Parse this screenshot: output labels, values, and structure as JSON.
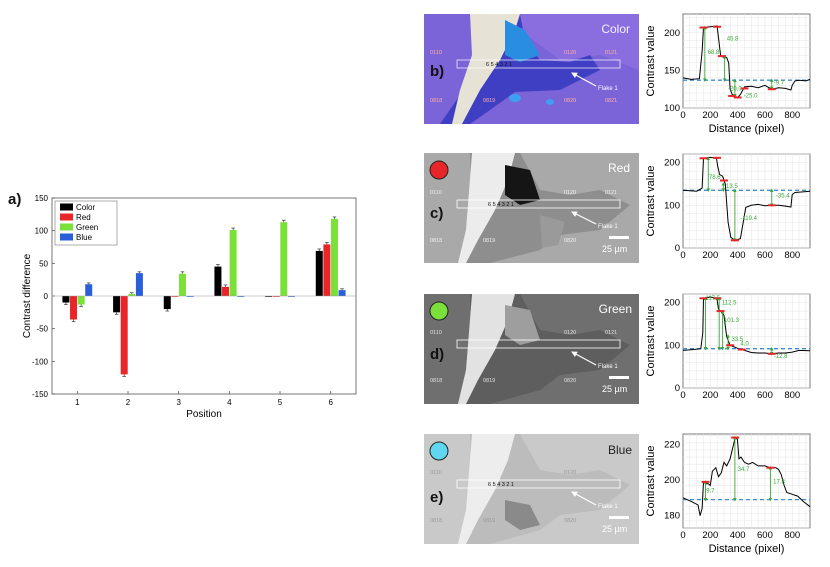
{
  "colors": {
    "Color": "#000000",
    "Red": "#e8262a",
    "Green": "#7ce03a",
    "Blue": "#2b5fd9",
    "baseline": "#3f8fd0",
    "annotation": "#3aa63a",
    "marker": "#e8262a"
  },
  "panel_labels": {
    "a": "a)",
    "b": "b)",
    "c": "c)",
    "d": "d)",
    "e": "e)"
  },
  "images": [
    {
      "key": "b",
      "channel_label": "Color",
      "flake_label": "Flake 1",
      "scale_bar": "",
      "position_labels": "6 5 4 3 2 1",
      "grid_codes": [
        "0110",
        "0120",
        "0121",
        "0818",
        "0819",
        "0820",
        "0821"
      ],
      "dot_color": ""
    },
    {
      "key": "c",
      "channel_label": "Red",
      "flake_label": "Flake 1",
      "scale_bar": "25 µm",
      "position_labels": "6 5 4 3 2 1",
      "grid_codes": [
        "0110",
        "0120",
        "0121",
        "0818",
        "0819",
        "0820",
        "0821"
      ],
      "dot_color": "#e8262a"
    },
    {
      "key": "d",
      "channel_label": "Green",
      "flake_label": "Flake 1",
      "scale_bar": "25 µm",
      "position_labels": "6 5 4 3 2 1",
      "grid_codes": [
        "0110",
        "0120",
        "0121",
        "0818",
        "0819",
        "0820",
        "0821"
      ],
      "dot_color": "#7ce03a"
    },
    {
      "key": "e",
      "channel_label": "Blue",
      "flake_label": "Flake 1",
      "scale_bar": "25 µm",
      "position_labels": "6 5 4 3 2 1",
      "grid_codes": [
        "0110",
        "0120",
        "0121",
        "0818",
        "0819",
        "0820",
        "0821"
      ],
      "dot_color": "#60d6f0"
    }
  ],
  "chart_data": [
    {
      "id": "a",
      "type": "bar",
      "xlabel": "Position",
      "ylabel": "Contrast difference",
      "categories": [
        "1",
        "2",
        "3",
        "4",
        "5",
        "6"
      ],
      "ylim": [
        -150,
        150
      ],
      "yticks": [
        -150,
        -100,
        -50,
        0,
        50,
        100,
        150
      ],
      "legend_position": "top-left",
      "series": [
        {
          "name": "Color",
          "values": [
            -10,
            -25,
            -20,
            45,
            0,
            69
          ],
          "errors": [
            3,
            3,
            3,
            3,
            0,
            3
          ]
        },
        {
          "name": "Red",
          "values": [
            -36,
            -120,
            0,
            14,
            0,
            79
          ],
          "errors": [
            3,
            3,
            0,
            3,
            0,
            3
          ]
        },
        {
          "name": "Green",
          "values": [
            -13,
            3,
            34,
            101,
            113,
            118
          ],
          "errors": [
            3,
            2,
            3,
            3,
            3,
            3
          ]
        },
        {
          "name": "Blue",
          "values": [
            18,
            35,
            0,
            0,
            0,
            9
          ],
          "errors": [
            2,
            2,
            0,
            0,
            0,
            2
          ]
        }
      ]
    },
    {
      "id": "b-profile",
      "type": "line",
      "xlabel": "Distance (pixel)",
      "ylabel": "Contrast value",
      "xlim": [
        0,
        930
      ],
      "ylim": [
        100,
        225
      ],
      "xticks": [
        0,
        200,
        400,
        600,
        800
      ],
      "yticks": [
        100,
        150,
        200
      ],
      "grid": true,
      "baseline": 137,
      "profile": [
        [
          0,
          140
        ],
        [
          60,
          138
        ],
        [
          120,
          139
        ],
        [
          140,
          175
        ],
        [
          150,
          207
        ],
        [
          200,
          208
        ],
        [
          250,
          209
        ],
        [
          262,
          190
        ],
        [
          275,
          170
        ],
        [
          290,
          168
        ],
        [
          320,
          167
        ],
        [
          335,
          160
        ],
        [
          345,
          125
        ],
        [
          360,
          118
        ],
        [
          380,
          116
        ],
        [
          400,
          114
        ],
        [
          420,
          118
        ],
        [
          450,
          128
        ],
        [
          500,
          129
        ],
        [
          550,
          127
        ],
        [
          600,
          130
        ],
        [
          650,
          125
        ],
        [
          700,
          127
        ],
        [
          750,
          126
        ],
        [
          790,
          124
        ],
        [
          800,
          130
        ],
        [
          820,
          136
        ],
        [
          850,
          137
        ],
        [
          900,
          136
        ],
        [
          930,
          138
        ]
      ],
      "markers": [
        [
          150,
          207
        ],
        [
          250,
          208
        ],
        [
          285,
          169
        ],
        [
          360,
          116
        ],
        [
          400,
          114
        ],
        [
          450,
          126
        ],
        [
          650,
          125
        ]
      ],
      "annotations": [
        {
          "text": "68.8",
          "x": 180,
          "y": 172
        },
        {
          "text": "45.8",
          "x": 320,
          "y": 190
        },
        {
          "text": "-20.0",
          "x": 330,
          "y": 123
        },
        {
          "text": "-25.0",
          "x": 445,
          "y": 114
        },
        {
          "text": "-9.7",
          "x": 665,
          "y": 131
        }
      ],
      "arrows": [
        [
          160,
          137,
          207
        ],
        [
          305,
          137,
          168
        ],
        [
          380,
          137,
          116
        ],
        [
          650,
          137,
          126
        ]
      ]
    },
    {
      "id": "c-profile",
      "type": "line",
      "xlabel": "",
      "ylabel": "Contrast value",
      "xlim": [
        0,
        930
      ],
      "ylim": [
        0,
        220
      ],
      "xticks": [
        0,
        200,
        400,
        600,
        800
      ],
      "yticks": [
        0,
        100,
        200
      ],
      "grid": true,
      "baseline": 135,
      "profile": [
        [
          0,
          135
        ],
        [
          100,
          133
        ],
        [
          140,
          140
        ],
        [
          150,
          210
        ],
        [
          200,
          212
        ],
        [
          245,
          210
        ],
        [
          255,
          190
        ],
        [
          268,
          172
        ],
        [
          290,
          168
        ],
        [
          310,
          150
        ],
        [
          330,
          60
        ],
        [
          350,
          25
        ],
        [
          380,
          18
        ],
        [
          420,
          22
        ],
        [
          460,
          95
        ],
        [
          500,
          100
        ],
        [
          550,
          102
        ],
        [
          600,
          99
        ],
        [
          650,
          100
        ],
        [
          700,
          100
        ],
        [
          750,
          98
        ],
        [
          790,
          96
        ],
        [
          800,
          125
        ],
        [
          820,
          130
        ],
        [
          900,
          132
        ],
        [
          930,
          133
        ]
      ],
      "markers": [
        [
          150,
          210
        ],
        [
          250,
          211
        ],
        [
          300,
          158
        ],
        [
          380,
          18
        ],
        [
          650,
          100
        ]
      ],
      "annotations": [
        {
          "text": "78.6",
          "x": 190,
          "y": 162
        },
        {
          "text": "13.5",
          "x": 315,
          "y": 140
        },
        {
          "text": "-119.4",
          "x": 420,
          "y": 65
        },
        {
          "text": "-35.4",
          "x": 680,
          "y": 118
        }
      ],
      "arrows": [
        [
          185,
          135,
          210
        ],
        [
          295,
          135,
          150
        ],
        [
          380,
          135,
          18
        ],
        [
          650,
          135,
          100
        ]
      ]
    },
    {
      "id": "d-profile",
      "type": "line",
      "xlabel": "",
      "ylabel": "Contrast value",
      "xlim": [
        0,
        930
      ],
      "ylim": [
        0,
        220
      ],
      "xticks": [
        0,
        200,
        400,
        600,
        800
      ],
      "yticks": [
        0,
        100,
        200
      ],
      "grid": true,
      "baseline": 92,
      "profile": [
        [
          0,
          88
        ],
        [
          80,
          90
        ],
        [
          130,
          92
        ],
        [
          145,
          130
        ],
        [
          150,
          210
        ],
        [
          200,
          213
        ],
        [
          248,
          210
        ],
        [
          260,
          185
        ],
        [
          275,
          180
        ],
        [
          300,
          170
        ],
        [
          320,
          120
        ],
        [
          345,
          100
        ],
        [
          360,
          98
        ],
        [
          400,
          93
        ],
        [
          450,
          88
        ],
        [
          500,
          83
        ],
        [
          550,
          82
        ],
        [
          600,
          82
        ],
        [
          650,
          80
        ],
        [
          700,
          82
        ],
        [
          750,
          82
        ],
        [
          800,
          84
        ],
        [
          850,
          88
        ],
        [
          930,
          87
        ]
      ],
      "markers": [
        [
          150,
          210
        ],
        [
          252,
          210
        ],
        [
          275,
          180
        ],
        [
          345,
          100
        ],
        [
          430,
          90
        ],
        [
          650,
          80
        ]
      ],
      "annotations": [
        {
          "text": "117.5",
          "x": 165,
          "y": 206
        },
        {
          "text": "112.5",
          "x": 285,
          "y": 195
        },
        {
          "text": "101.3",
          "x": 300,
          "y": 155
        },
        {
          "text": "33.5",
          "x": 355,
          "y": 110
        },
        {
          "text": "4.0",
          "x": 420,
          "y": 100
        },
        {
          "text": "-12.8",
          "x": 665,
          "y": 70
        }
      ],
      "arrows": [
        [
          165,
          92,
          210
        ],
        [
          265,
          92,
          210
        ],
        [
          290,
          92,
          178
        ],
        [
          330,
          92,
          122
        ],
        [
          650,
          92,
          80
        ]
      ]
    },
    {
      "id": "e-profile",
      "type": "line",
      "xlabel": "Distance (pixel)",
      "ylabel": "Contrast value",
      "xlim": [
        0,
        930
      ],
      "ylim": [
        173,
        226
      ],
      "xticks": [
        0,
        200,
        400,
        600,
        800
      ],
      "yticks": [
        180,
        200,
        220
      ],
      "grid": true,
      "baseline": 189,
      "profile": [
        [
          0,
          190
        ],
        [
          60,
          188
        ],
        [
          110,
          186
        ],
        [
          125,
          180
        ],
        [
          140,
          184
        ],
        [
          150,
          199
        ],
        [
          165,
          198
        ],
        [
          185,
          198
        ],
        [
          200,
          197
        ],
        [
          215,
          205
        ],
        [
          240,
          207
        ],
        [
          260,
          202
        ],
        [
          280,
          204
        ],
        [
          300,
          210
        ],
        [
          320,
          208
        ],
        [
          345,
          212
        ],
        [
          370,
          220
        ],
        [
          382,
          224
        ],
        [
          398,
          223
        ],
        [
          410,
          212
        ],
        [
          425,
          213
        ],
        [
          450,
          210
        ],
        [
          480,
          209
        ],
        [
          510,
          210
        ],
        [
          550,
          208
        ],
        [
          600,
          208
        ],
        [
          640,
          207
        ],
        [
          680,
          207
        ],
        [
          700,
          206
        ],
        [
          720,
          203
        ],
        [
          740,
          197
        ],
        [
          760,
          193
        ],
        [
          800,
          192
        ],
        [
          840,
          191
        ],
        [
          880,
          188
        ],
        [
          930,
          185
        ]
      ],
      "markers": [
        [
          165,
          199
        ],
        [
          382,
          224
        ],
        [
          640,
          207
        ]
      ],
      "annotations": [
        {
          "text": "9.7",
          "x": 170,
          "y": 193
        },
        {
          "text": "34.7",
          "x": 400,
          "y": 205
        },
        {
          "text": "17.8",
          "x": 660,
          "y": 198
        }
      ],
      "arrows": [
        [
          165,
          189,
          199
        ],
        [
          380,
          189,
          224
        ],
        [
          640,
          189,
          207
        ]
      ]
    }
  ]
}
